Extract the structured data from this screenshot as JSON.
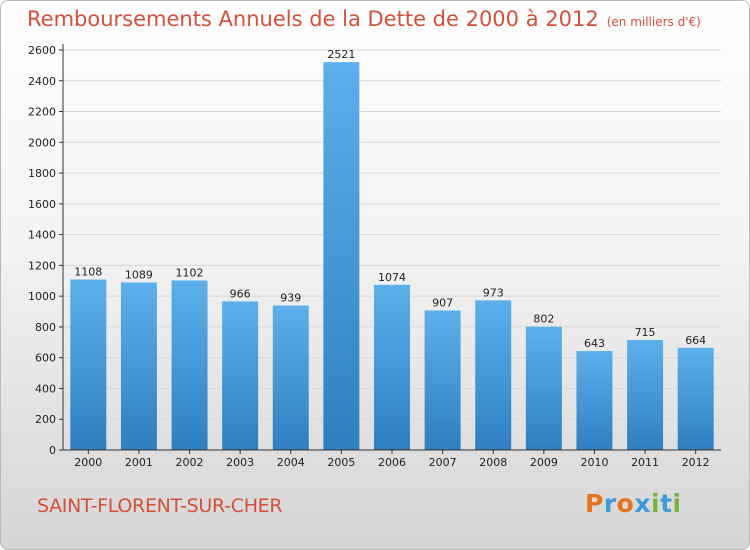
{
  "header": {
    "title": "Remboursements Annuels de la Dette de 2000 à 2012",
    "unit": "(en milliers d'€)"
  },
  "footer": {
    "commune": "SAINT-FLORENT-SUR-CHER",
    "logo_letters": [
      "P",
      "r",
      "o",
      "x",
      "i",
      "t",
      "i"
    ],
    "logo_colors": [
      "#e8731d",
      "#3d9bd6",
      "#e8731d",
      "#3d9bd6",
      "#7bb33f",
      "#3d9bd6",
      "#7bb33f"
    ]
  },
  "colors": {
    "bar_top": "#5cb0eb",
    "bar_bottom": "#2f7fc0",
    "grid": "#d7d7d7",
    "axis": "#333333",
    "text": "#222222"
  },
  "chart_data": {
    "type": "bar",
    "categories": [
      "2000",
      "2001",
      "2002",
      "2003",
      "2004",
      "2005",
      "2006",
      "2007",
      "2008",
      "2009",
      "2010",
      "2011",
      "2012"
    ],
    "values": [
      1108,
      1089,
      1102,
      966,
      939,
      2521,
      1074,
      907,
      973,
      802,
      643,
      715,
      664
    ],
    "yticks": [
      0,
      200,
      400,
      600,
      800,
      1000,
      1200,
      1400,
      1600,
      1800,
      2000,
      2200,
      2400,
      2600
    ],
    "ylim": [
      0,
      2600
    ],
    "grid": true
  }
}
